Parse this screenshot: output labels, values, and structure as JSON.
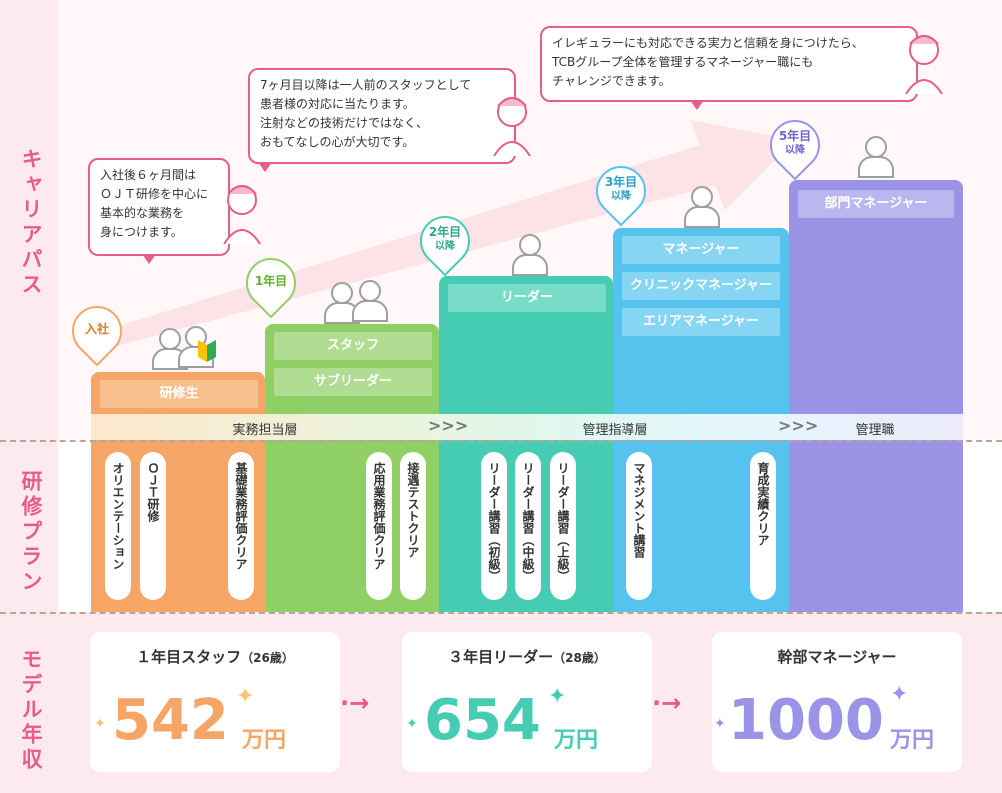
{
  "sections": {
    "career": "キャリアパス",
    "training": "研修プラン",
    "salary": "モデル年収"
  },
  "markers": {
    "join": "入社",
    "year1": "1年目",
    "year2": "2年目",
    "year2_sub": "以降",
    "year3": "3年目",
    "year3_sub": "以降",
    "year5": "5年目",
    "year5_sub": "以降"
  },
  "bubbles": {
    "b1": [
      "入社後６ヶ月間は",
      "ＯＪＴ研修を中心に",
      "基本的な業務を",
      "身につけます。"
    ],
    "b2": [
      "7ヶ月目以降は一人前のスタッフとして",
      "患者様の対応に当たります。",
      "注射などの技術だけではなく、",
      "おもてなしの心が大切です。"
    ],
    "b3": [
      "イレギュラーにも対応できる実力と信頼を身につけたら、",
      "TCBグループ全体を管理するマネージャー職にも",
      "チャレンジできます。"
    ]
  },
  "roles": {
    "trainee": "研修生",
    "staff": "スタッフ",
    "subleader": "サブリーダー",
    "leader": "リーダー",
    "manager": "マネージャー",
    "clinic_manager": "クリニックマネージャー",
    "area_manager": "エリアマネージャー",
    "dept_manager": "部門マネージャー"
  },
  "layers": {
    "practice": "実務担当層",
    "leadership": "管理指導層",
    "management": "管理職"
  },
  "training_items": {
    "orientation": "オリエンテーション",
    "ojt": "ＯＪＴ研修",
    "basic_clear": "基礎業務評価クリア",
    "applied_clear": "応用業務評価クリア",
    "service_clear": "接遇テストクリア",
    "leader_basic": "リーダー講習（初級）",
    "leader_mid": "リーダー講習（中級）",
    "leader_adv": "リーダー講習（上級）",
    "mgmt_course": "マネジメント講習",
    "growth_clear": "育成実績クリア"
  },
  "salaries": [
    {
      "title": "１年目スタッフ",
      "age": "（26歳）",
      "amount": "542",
      "unit": "万円"
    },
    {
      "title": "３年目リーダー",
      "age": "（28歳）",
      "amount": "654",
      "unit": "万円"
    },
    {
      "title": "幹部マネージャー",
      "age": "",
      "amount": "1000",
      "unit": "万円"
    }
  ],
  "colors": {
    "pink": "#e85c8a",
    "orange": "#f5a667",
    "green": "#8fcf66",
    "teal": "#45ccb3",
    "blue": "#55c3ee",
    "purple": "#9a93e6"
  },
  "icons": {
    "beginner_mark": "beginner-mark-icon",
    "arrow": "double-chevron-icon"
  }
}
